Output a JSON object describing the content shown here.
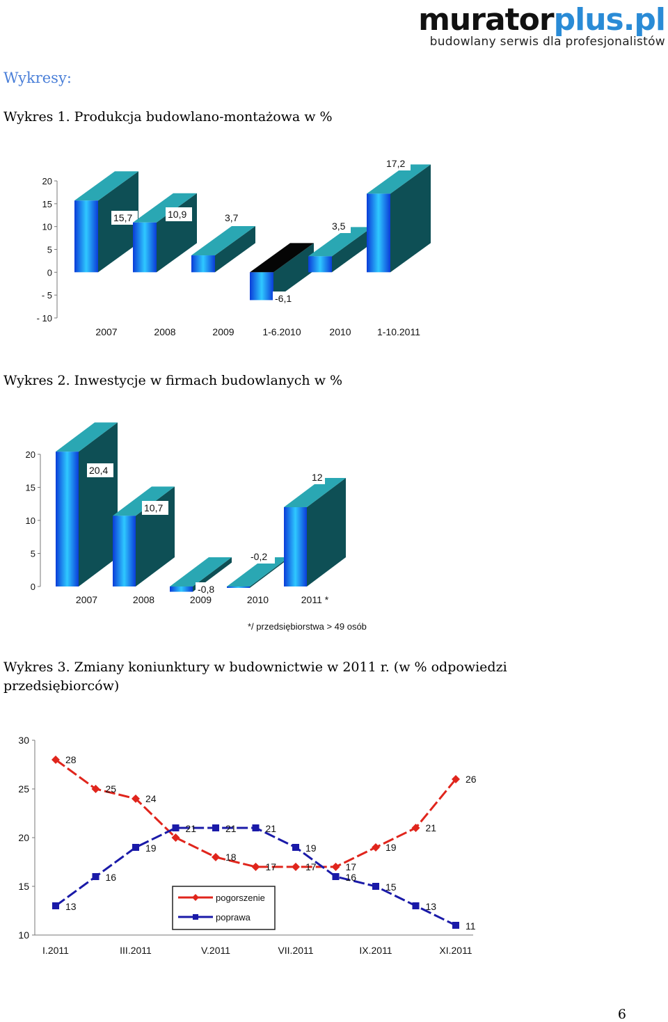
{
  "logo": {
    "part1": "murator",
    "part2": "plus.pl",
    "tagline": "budowlany serwis dla profesjonalistów",
    "color_primary": "#111111",
    "color_accent": "#2a8bd6"
  },
  "section_heading": "Wykresy:",
  "captions": {
    "c1": "Wykres 1. Produkcja budowlano-montażowa w %",
    "c2": "Wykres 2. Inwestycje w firmach budowlanych w %",
    "c3": "Wykres 3. Zmiany koniunktury w budownictwie w 2011 r. (w % odpowiedzi przedsiębiorców)"
  },
  "page_number": "6",
  "chart_data": [
    {
      "type": "bar",
      "categories": [
        "2007",
        "2008",
        "2009",
        "1-6.2010",
        "2010",
        "1-10.2011"
      ],
      "values": [
        15.7,
        10.9,
        3.7,
        -6.1,
        3.5,
        17.2
      ],
      "value_labels": [
        "15,7",
        "10,9",
        "3,7",
        "-6,1",
        "3,5",
        "17,2"
      ],
      "ylim": [
        -10,
        20
      ],
      "yticks": [
        20,
        15,
        10,
        5,
        0,
        -5,
        -10
      ],
      "ytick_labels": [
        "20",
        "15",
        "10",
        "5",
        "0",
        "- 5",
        "- 10"
      ],
      "bar_colors": {
        "front": "#1e6fff",
        "side": "#0e4f55",
        "top": "#2aa7b3",
        "negative_top": "#050505"
      }
    },
    {
      "type": "bar",
      "categories": [
        "2007",
        "2008",
        "2009",
        "2010",
        "2011 *"
      ],
      "values": [
        20.4,
        10.7,
        -0.8,
        -0.2,
        12
      ],
      "value_labels": [
        "20,4",
        "10,7",
        "-0,8",
        "-0,2",
        "12"
      ],
      "ylim": [
        0,
        20
      ],
      "yticks": [
        20,
        15,
        10,
        5,
        0
      ],
      "ytick_labels": [
        "20",
        "15",
        "10",
        "5",
        "0"
      ],
      "footnote": "*/ przedsiębiorstwa > 49 osób",
      "bar_colors": {
        "front": "#1e6fff",
        "side": "#0e4f55",
        "top": "#2aa7b3"
      }
    },
    {
      "type": "line",
      "x_tick_labels": [
        "I.2011",
        "III.2011",
        "V.2011",
        "VII.2011",
        "IX.2011",
        "XI.2011"
      ],
      "ylim": [
        10,
        30
      ],
      "yticks": [
        30,
        25,
        20,
        15,
        10
      ],
      "series": [
        {
          "name": "pogorszenie",
          "color": "#e0251c",
          "values": [
            28,
            25,
            24,
            20,
            18,
            17,
            17,
            17,
            19,
            21,
            26
          ],
          "labels": [
            "28",
            "25",
            "24",
            "",
            "18",
            "17",
            "17",
            "17",
            "19",
            "21",
            "26"
          ]
        },
        {
          "name": "poprawa",
          "color": "#1a1aa8",
          "values": [
            13,
            16,
            19,
            21,
            21,
            21,
            19,
            16,
            15,
            13,
            11
          ],
          "labels": [
            "13",
            "16",
            "19",
            "21",
            "21",
            "21",
            "19",
            "16",
            "15",
            "13",
            "11"
          ]
        }
      ]
    }
  ]
}
